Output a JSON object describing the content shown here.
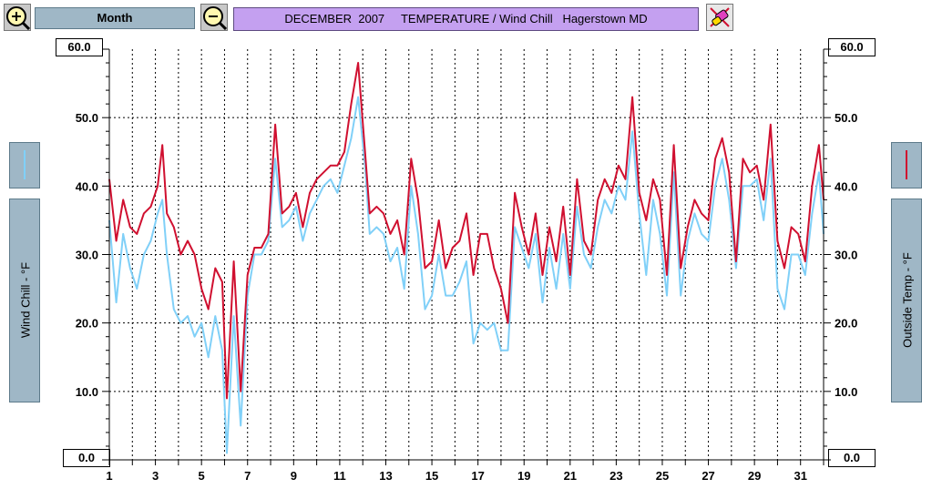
{
  "toolbar": {
    "zoom_in_icon": "zoom-in-icon",
    "zoom_out_icon": "zoom-out-icon",
    "period_label": "Month",
    "title": "DECEMBER  2007     TEMPERATURE / Wind Chill   Hagerstown MD",
    "clear_icon": "eraser-icon"
  },
  "colors": {
    "wind_chill": "#80d0f8",
    "outside_temp": "#d01030",
    "panel": "#9fb7c6",
    "title_bg": "#c4a0f0"
  },
  "left_axis": {
    "label": "Wind Chill - °F",
    "top": "60.0",
    "bottom": "0.0"
  },
  "right_axis": {
    "label": "Outside Temp - °F",
    "top": "60.0",
    "bottom": "0.0"
  },
  "chart_data": {
    "type": "line",
    "title": "DECEMBER  2007     TEMPERATURE / Wind Chill   Hagerstown MD",
    "xlim": [
      1,
      32
    ],
    "ylim": [
      0,
      60
    ],
    "grid": true,
    "x_ticks": [
      "1",
      "3",
      "5",
      "7",
      "9",
      "11",
      "13",
      "15",
      "17",
      "19",
      "21",
      "23",
      "25",
      "27",
      "29",
      "31"
    ],
    "y_ticks": [
      "10.0",
      "20.0",
      "30.0",
      "40.0",
      "50.0"
    ],
    "series": [
      {
        "name": "Outside Temp - °F",
        "x": [
          1,
          1.3,
          1.6,
          1.9,
          2.2,
          2.5,
          2.8,
          3.1,
          3.3,
          3.5,
          3.8,
          4.1,
          4.4,
          4.7,
          5.0,
          5.3,
          5.6,
          5.9,
          6.1,
          6.4,
          6.7,
          7.0,
          7.3,
          7.6,
          7.9,
          8.2,
          8.5,
          8.8,
          9.1,
          9.4,
          9.7,
          10.0,
          10.3,
          10.6,
          10.9,
          11.2,
          11.5,
          11.8,
          12.1,
          12.3,
          12.6,
          12.9,
          13.2,
          13.5,
          13.8,
          14.1,
          14.4,
          14.7,
          15.0,
          15.3,
          15.6,
          15.9,
          16.2,
          16.5,
          16.8,
          17.1,
          17.4,
          17.7,
          18.0,
          18.3,
          18.6,
          18.9,
          19.2,
          19.5,
          19.8,
          20.1,
          20.4,
          20.7,
          21.0,
          21.3,
          21.6,
          21.9,
          22.2,
          22.5,
          22.8,
          23.1,
          23.4,
          23.7,
          24.0,
          24.3,
          24.6,
          24.9,
          25.2,
          25.5,
          25.8,
          26.1,
          26.4,
          26.7,
          27.0,
          27.3,
          27.6,
          27.9,
          28.2,
          28.5,
          28.8,
          29.1,
          29.4,
          29.7,
          30.0,
          30.3,
          30.6,
          30.9,
          31.2,
          31.5,
          31.8,
          32.0
        ],
        "y": [
          41,
          32,
          38,
          34,
          33,
          36,
          37,
          40,
          46,
          36,
          34,
          30,
          32,
          30,
          25,
          22,
          28,
          26,
          9,
          29,
          10,
          27,
          31,
          31,
          33,
          49,
          36,
          37,
          39,
          34,
          39,
          41,
          42,
          43,
          43,
          45,
          52,
          58,
          45,
          36,
          37,
          36,
          33,
          35,
          30,
          44,
          38,
          28,
          29,
          35,
          28,
          31,
          32,
          36,
          27,
          33,
          33,
          28,
          25,
          20,
          39,
          34,
          30,
          36,
          27,
          34,
          29,
          37,
          27,
          41,
          32,
          30,
          38,
          41,
          39,
          43,
          41,
          53,
          39,
          35,
          41,
          38,
          27,
          46,
          28,
          34,
          38,
          36,
          35,
          44,
          47,
          42,
          29,
          44,
          42,
          43,
          38,
          49,
          32,
          28,
          34,
          33,
          29,
          40,
          46,
          38
        ],
        "color": "#d01030"
      },
      {
        "name": "Wind Chill - °F",
        "x": [
          1,
          1.3,
          1.6,
          1.9,
          2.2,
          2.5,
          2.8,
          3.1,
          3.3,
          3.5,
          3.8,
          4.1,
          4.4,
          4.7,
          5.0,
          5.3,
          5.6,
          5.9,
          6.1,
          6.4,
          6.7,
          7.0,
          7.3,
          7.6,
          7.9,
          8.2,
          8.5,
          8.8,
          9.1,
          9.4,
          9.7,
          10.0,
          10.3,
          10.6,
          10.9,
          11.2,
          11.5,
          11.8,
          12.1,
          12.3,
          12.6,
          12.9,
          13.2,
          13.5,
          13.8,
          14.1,
          14.4,
          14.7,
          15.0,
          15.3,
          15.6,
          15.9,
          16.2,
          16.5,
          16.8,
          17.1,
          17.4,
          17.7,
          18.0,
          18.3,
          18.6,
          18.9,
          19.2,
          19.5,
          19.8,
          20.1,
          20.4,
          20.7,
          21.0,
          21.3,
          21.6,
          21.9,
          22.2,
          22.5,
          22.8,
          23.1,
          23.4,
          23.7,
          24.0,
          24.3,
          24.6,
          24.9,
          25.2,
          25.5,
          25.8,
          26.1,
          26.4,
          26.7,
          27.0,
          27.3,
          27.6,
          27.9,
          28.2,
          28.5,
          28.8,
          29.1,
          29.4,
          29.7,
          30.0,
          30.3,
          30.6,
          30.9,
          31.2,
          31.5,
          31.8,
          32.0
        ],
        "y": [
          35,
          23,
          33,
          28,
          25,
          30,
          32,
          36,
          38,
          30,
          22,
          20,
          21,
          18,
          20,
          15,
          21,
          16,
          1,
          21,
          5,
          24,
          30,
          30,
          32,
          44,
          34,
          35,
          37,
          32,
          36,
          38,
          40,
          41,
          39,
          43,
          47,
          53,
          43,
          33,
          34,
          33,
          29,
          31,
          25,
          40,
          33,
          22,
          24,
          30,
          24,
          24,
          26,
          29,
          17,
          20,
          19,
          20,
          16,
          16,
          34,
          31,
          28,
          33,
          23,
          31,
          25,
          33,
          25,
          37,
          30,
          28,
          34,
          38,
          36,
          40,
          38,
          48,
          36,
          27,
          38,
          33,
          24,
          42,
          24,
          32,
          36,
          33,
          32,
          40,
          44,
          38,
          28,
          40,
          40,
          41,
          35,
          44,
          25,
          22,
          30,
          30,
          27,
          36,
          42,
          33
        ],
        "color": "#80d0f8"
      }
    ]
  }
}
